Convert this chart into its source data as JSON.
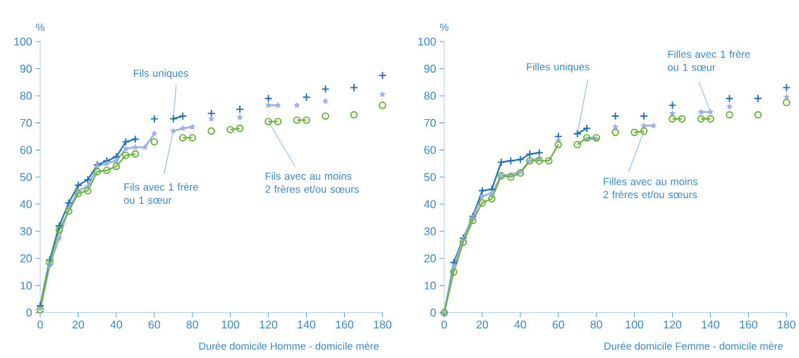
{
  "chart_data": [
    {
      "type": "line",
      "xlabel": "Durée domicile Homme - domicile mère",
      "ylabel": "%",
      "x": [
        0,
        5,
        10,
        15,
        20,
        25,
        30,
        35,
        40,
        45,
        50,
        55,
        60,
        65,
        70,
        75,
        80,
        85,
        90,
        95,
        100,
        105,
        110,
        115,
        120,
        125,
        130,
        135,
        140,
        145,
        150,
        155,
        160,
        165,
        170,
        175,
        180
      ],
      "series": [
        {
          "color": "#1f6fb5",
          "marker": "cross",
          "values": [
            2.5,
            19.5,
            32,
            40.5,
            47,
            49,
            54.5,
            56,
            57.5,
            63,
            64,
            null,
            71.5,
            null,
            71.5,
            72.5,
            null,
            null,
            73.5,
            null,
            null,
            75,
            null,
            null,
            79,
            null,
            null,
            null,
            79.5,
            null,
            82.5,
            null,
            null,
            83,
            null,
            null,
            87.5
          ]
        },
        {
          "color": "#9cb1e2",
          "marker": "star",
          "values": [
            1.5,
            17.5,
            27.5,
            38.5,
            45,
            46.5,
            54,
            55,
            56,
            60.5,
            61,
            61,
            66,
            null,
            67,
            68,
            68.5,
            null,
            71.5,
            null,
            null,
            72,
            null,
            null,
            76.5,
            76.5,
            null,
            76.5,
            null,
            null,
            78,
            null,
            null,
            null,
            null,
            null,
            80.5
          ]
        },
        {
          "color": "#6ab23c",
          "marker": "circle",
          "values": [
            1,
            18.5,
            30.5,
            37.5,
            44,
            45,
            52,
            52.5,
            54,
            58,
            58.5,
            null,
            63,
            null,
            null,
            64.5,
            64.5,
            null,
            67,
            null,
            67.5,
            68,
            null,
            null,
            70.5,
            70.5,
            null,
            71,
            71,
            null,
            72.5,
            null,
            null,
            73,
            null,
            null,
            76.5
          ]
        }
      ],
      "annotations": [
        {
          "text": "Fils uniques",
          "x": 70,
          "y": 71.5
        },
        {
          "text": "Fils avec 1 frère ou 1 sœur",
          "x": 70,
          "y": 67
        },
        {
          "text": "Fils avec au moins 2 frères et/ou sœurs",
          "x": 120,
          "y": 70.5
        }
      ],
      "xlim": [
        0,
        180
      ],
      "ylim": [
        0,
        100
      ],
      "xticks": [
        0,
        20,
        40,
        60,
        80,
        100,
        120,
        140,
        160,
        180
      ],
      "yticks": [
        0,
        10,
        20,
        30,
        40,
        50,
        60,
        70,
        80,
        90,
        100
      ],
      "line_style": "solid",
      "grid": false
    },
    {
      "type": "line",
      "xlabel": "Durée domicile Femme - domicile mère",
      "ylabel": "%",
      "x": [
        0,
        5,
        10,
        15,
        20,
        25,
        30,
        35,
        40,
        45,
        50,
        55,
        60,
        65,
        70,
        75,
        80,
        85,
        90,
        95,
        100,
        105,
        110,
        115,
        120,
        125,
        130,
        135,
        140,
        145,
        150,
        155,
        160,
        165,
        170,
        175,
        180
      ],
      "series": [
        {
          "color": "#1f6fb5",
          "marker": "cross",
          "values": [
            0,
            18.5,
            27.5,
            35.5,
            45,
            45.5,
            55.5,
            56,
            56.5,
            58.5,
            59,
            null,
            65,
            null,
            66,
            68,
            null,
            null,
            72.5,
            null,
            null,
            72.5,
            null,
            null,
            76.5,
            null,
            null,
            null,
            null,
            null,
            79,
            null,
            null,
            79,
            null,
            null,
            83
          ]
        },
        {
          "color": "#9cb1e2",
          "marker": "star",
          "values": [
            0,
            17,
            27,
            35,
            43,
            44,
            50.5,
            51,
            52,
            56,
            57,
            null,
            63.5,
            null,
            null,
            64,
            64,
            null,
            68.5,
            null,
            null,
            69,
            69,
            null,
            73.5,
            null,
            null,
            74,
            74,
            null,
            76,
            null,
            null,
            null,
            null,
            null,
            79.5
          ]
        },
        {
          "color": "#6ab23c",
          "marker": "circle",
          "values": [
            0,
            15,
            26,
            34,
            40.5,
            42,
            50.5,
            50,
            51.5,
            56,
            56,
            56,
            62,
            null,
            62,
            64.5,
            64.5,
            null,
            66.5,
            null,
            66.5,
            67,
            null,
            null,
            71.5,
            71.5,
            null,
            71.5,
            71.5,
            null,
            73,
            null,
            null,
            73,
            null,
            null,
            77.5
          ]
        }
      ],
      "annotations": [
        {
          "text": "Filles uniques",
          "x": 70,
          "y": 66
        },
        {
          "text": "Filles avec 1 frère ou 1 sœur",
          "x": 140,
          "y": 74
        },
        {
          "text": "Filles avec au moins 2 frères et/ou sœurs",
          "x": 105,
          "y": 67
        }
      ],
      "xlim": [
        0,
        180
      ],
      "ylim": [
        0,
        100
      ],
      "xticks": [
        0,
        20,
        40,
        60,
        80,
        100,
        120,
        140,
        160,
        180
      ],
      "yticks": [
        0,
        10,
        20,
        30,
        40,
        50,
        60,
        70,
        80,
        90,
        100
      ],
      "line_style": "solid",
      "grid": false
    }
  ]
}
